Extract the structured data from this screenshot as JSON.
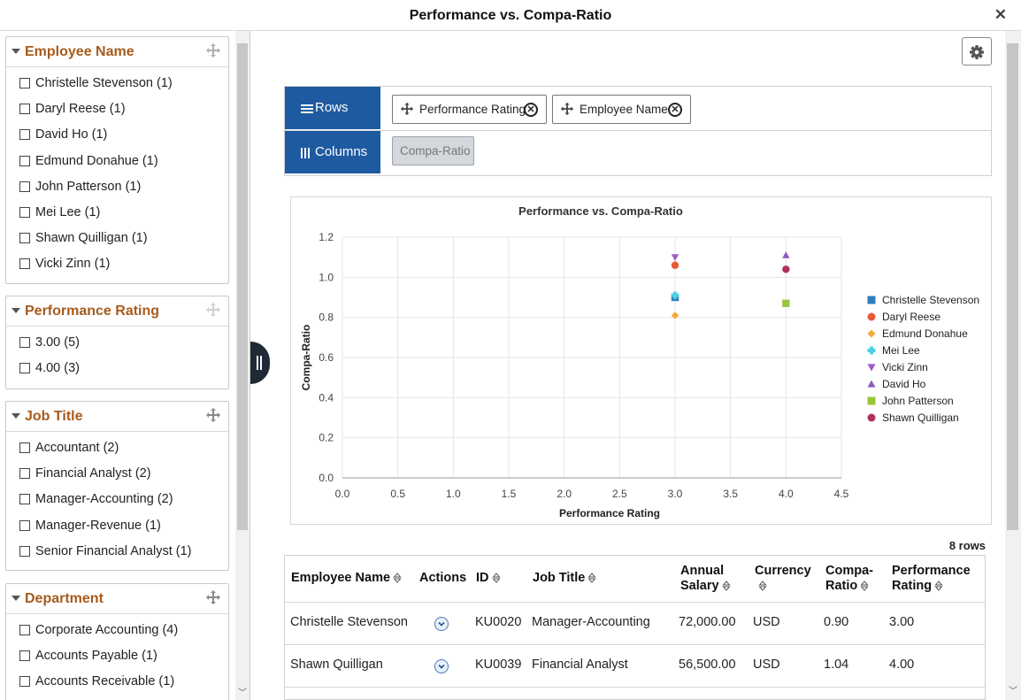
{
  "window": {
    "title": "Performance vs. Compa-Ratio",
    "close_icon": "close-icon"
  },
  "facets": [
    {
      "title": "Employee Name",
      "items": [
        "Christelle Stevenson (1)",
        "Daryl Reese (1)",
        "David Ho (1)",
        "Edmund Donahue (1)",
        "John Patterson (1)",
        "Mei Lee (1)",
        "Shawn Quilligan (1)",
        "Vicki Zinn (1)"
      ]
    },
    {
      "title": "Performance Rating",
      "items": [
        "3.00 (5)",
        "4.00 (3)"
      ]
    },
    {
      "title": "Job Title",
      "items": [
        "Accountant (2)",
        "Financial Analyst (2)",
        "Manager-Accounting (2)",
        "Manager-Revenue (1)",
        "Senior Financial Analyst (1)"
      ]
    },
    {
      "title": "Department",
      "items": [
        "Corporate Accounting (4)",
        "Accounts Payable (1)",
        "Accounts Receivable (1)"
      ]
    }
  ],
  "pivot": {
    "rows_label": "Rows",
    "columns_label": "Columns",
    "rows_chips": [
      "Performance Rating",
      "Employee Name"
    ],
    "columns_chips": [
      "Compa-Ratio"
    ]
  },
  "chart_data": {
    "type": "scatter",
    "title": "Performance vs. Compa-Ratio",
    "xlabel": "Performance Rating",
    "ylabel": "Compa-Ratio",
    "xlim": [
      0,
      4.5
    ],
    "ylim": [
      0,
      1.2
    ],
    "xticks": [
      "0.0",
      "0.5",
      "1.0",
      "1.5",
      "2.0",
      "2.5",
      "3.0",
      "3.5",
      "4.0",
      "4.5"
    ],
    "yticks": [
      "0.0",
      "0.2",
      "0.4",
      "0.6",
      "0.8",
      "1.0",
      "1.2"
    ],
    "grid": true,
    "legend_position": "right",
    "series": [
      {
        "name": "Christelle Stevenson",
        "x": 3.0,
        "y": 0.9,
        "color": "#2f7ebd",
        "marker": "square"
      },
      {
        "name": "Daryl Reese",
        "x": 3.0,
        "y": 1.06,
        "color": "#e8593a",
        "marker": "circle"
      },
      {
        "name": "Edmund Donahue",
        "x": 3.0,
        "y": 0.81,
        "color": "#f5a93a",
        "marker": "diamond"
      },
      {
        "name": "Mei Lee",
        "x": 3.0,
        "y": 0.91,
        "color": "#4fd0e0",
        "marker": "cross"
      },
      {
        "name": "Vicki Zinn",
        "x": 3.0,
        "y": 1.1,
        "color": "#9b59c8",
        "marker": "triangle-down"
      },
      {
        "name": "David Ho",
        "x": 4.0,
        "y": 1.11,
        "color": "#8a5bc2",
        "marker": "triangle"
      },
      {
        "name": "John Patterson",
        "x": 4.0,
        "y": 0.87,
        "color": "#9cc43a",
        "marker": "square"
      },
      {
        "name": "Shawn Quilligan",
        "x": 4.0,
        "y": 1.04,
        "color": "#b0315e",
        "marker": "circle"
      }
    ]
  },
  "table": {
    "row_count": "8 rows",
    "headers": {
      "employee_name": "Employee Name",
      "actions": "Actions",
      "id": "ID",
      "job_title": "Job Title",
      "annual": "Annual",
      "salary": "Salary",
      "currency": "Currency",
      "compa": "Compa-",
      "ratio": "Ratio",
      "performance": "Performance",
      "rating": "Rating"
    },
    "rows": [
      {
        "employee_name": "Christelle Stevenson",
        "id": "KU0020",
        "job_title": "Manager-Accounting",
        "salary": "72,000.00",
        "currency": "USD",
        "compa": "0.90",
        "rating": "3.00"
      },
      {
        "employee_name": "Shawn Quilligan",
        "id": "KU0039",
        "job_title": "Financial Analyst",
        "salary": "56,500.00",
        "currency": "USD",
        "compa": "1.04",
        "rating": "4.00"
      }
    ]
  }
}
